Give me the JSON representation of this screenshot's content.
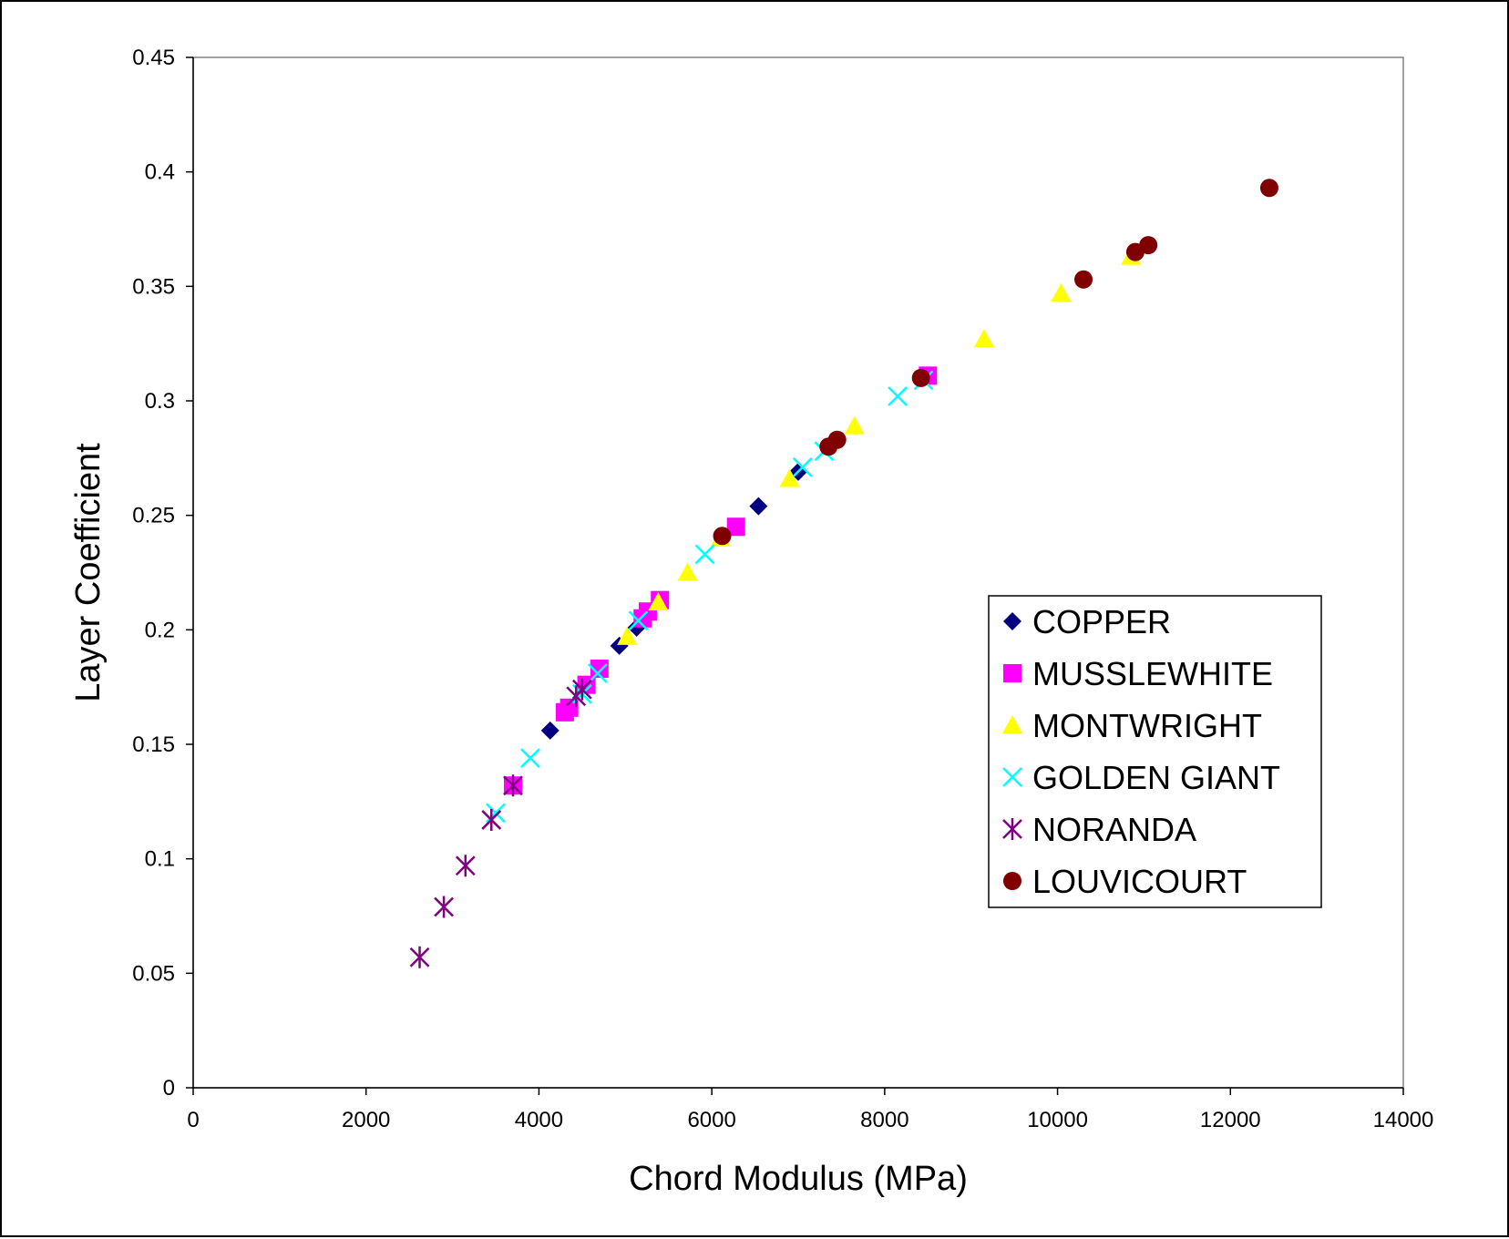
{
  "chart_data": {
    "type": "scatter",
    "title": "",
    "xlabel": "Chord Modulus (MPa)",
    "ylabel": "Layer Coefficient",
    "xlim": [
      0,
      14000
    ],
    "ylim": [
      0,
      0.45
    ],
    "x_ticks": [
      "0",
      "2000",
      "4000",
      "6000",
      "8000",
      "10000",
      "12000",
      "14000"
    ],
    "y_ticks": [
      "0",
      "0.05",
      "0.1",
      "0.15",
      "0.2",
      "0.25",
      "0.3",
      "0.35",
      "0.4",
      "0.45"
    ],
    "grid": false,
    "legend_position": "right",
    "series": [
      {
        "name": "COPPER",
        "marker": "diamond",
        "color": "#000080",
        "points": [
          [
            4130,
            0.156
          ],
          [
            4930,
            0.193
          ],
          [
            5130,
            0.201
          ],
          [
            6540,
            0.254
          ],
          [
            7000,
            0.269
          ]
        ]
      },
      {
        "name": "MUSSLEWHITE",
        "marker": "square",
        "color": "#ff00ff",
        "points": [
          [
            3700,
            0.132
          ],
          [
            4300,
            0.164
          ],
          [
            4350,
            0.166
          ],
          [
            4550,
            0.176
          ],
          [
            4700,
            0.183
          ],
          [
            5200,
            0.205
          ],
          [
            5260,
            0.208
          ],
          [
            5400,
            0.213
          ],
          [
            6280,
            0.245
          ],
          [
            8500,
            0.311
          ]
        ]
      },
      {
        "name": "MONTWRIGHT",
        "marker": "triangle",
        "color": "#ffff00",
        "points": [
          [
            5020,
            0.197
          ],
          [
            5380,
            0.212
          ],
          [
            5720,
            0.225
          ],
          [
            6100,
            0.24
          ],
          [
            6900,
            0.266
          ],
          [
            7650,
            0.289
          ],
          [
            9150,
            0.327
          ],
          [
            10040,
            0.347
          ],
          [
            10850,
            0.363
          ]
        ]
      },
      {
        "name": "GOLDEN GIANT",
        "marker": "x",
        "color": "#00ffff",
        "points": [
          [
            3500,
            0.12
          ],
          [
            3900,
            0.144
          ],
          [
            4500,
            0.172
          ],
          [
            4680,
            0.181
          ],
          [
            5150,
            0.204
          ],
          [
            5920,
            0.233
          ],
          [
            7050,
            0.271
          ],
          [
            7300,
            0.278
          ],
          [
            8150,
            0.302
          ],
          [
            8450,
            0.309
          ]
        ]
      },
      {
        "name": "NORANDA",
        "marker": "star",
        "color": "#800080",
        "points": [
          [
            2620,
            0.057
          ],
          [
            2900,
            0.079
          ],
          [
            3150,
            0.097
          ],
          [
            3450,
            0.117
          ],
          [
            3700,
            0.132
          ],
          [
            4430,
            0.171
          ],
          [
            4500,
            0.174
          ]
        ]
      },
      {
        "name": "LOUVICOURT",
        "marker": "circle",
        "color": "#800000",
        "points": [
          [
            6120,
            0.241
          ],
          [
            7350,
            0.28
          ],
          [
            7450,
            0.283
          ],
          [
            8420,
            0.31
          ],
          [
            10300,
            0.353
          ],
          [
            10900,
            0.365
          ],
          [
            11050,
            0.368
          ],
          [
            12450,
            0.393
          ]
        ]
      }
    ]
  }
}
